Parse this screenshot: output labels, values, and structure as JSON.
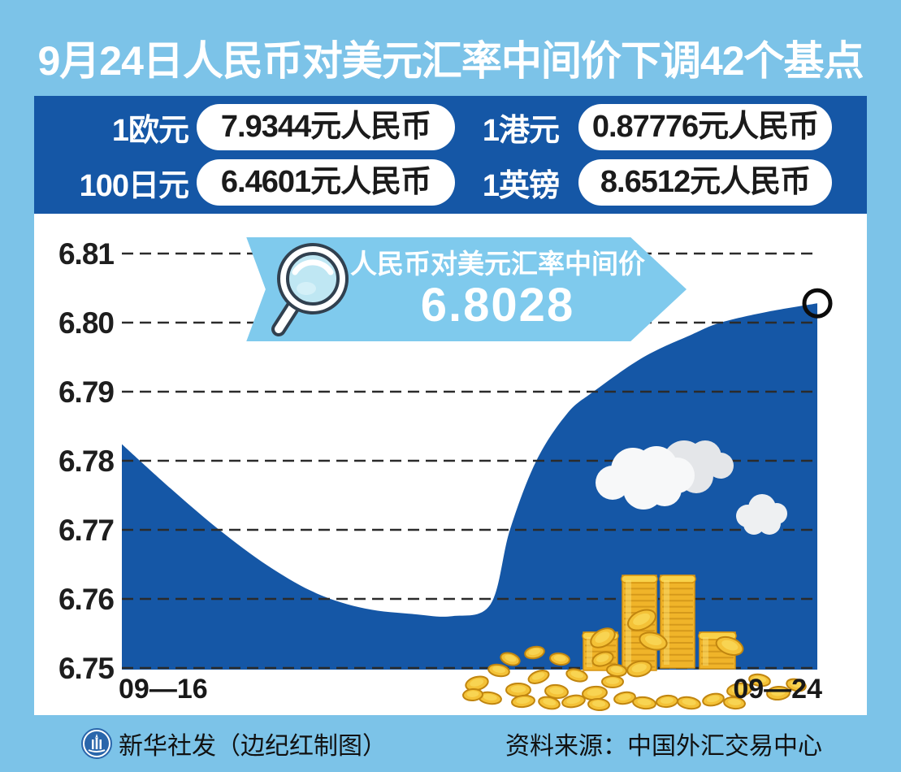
{
  "title": "9月24日人民币对美元汇率中间价下调42个基点",
  "rates": [
    {
      "label": "1欧元",
      "value": "7.9344元人民币"
    },
    {
      "label": "1港元",
      "value": "0.87776元人民币"
    },
    {
      "label": "100日元",
      "value": "6.4601元人民币"
    },
    {
      "label": "1英镑",
      "value": "8.6512元人民币"
    }
  ],
  "callout": {
    "icon": "magnifier-icon",
    "label": "人民币对美元汇率中间价",
    "value": "6.8028"
  },
  "footer": {
    "credit": "新华社发（边纪红制图）",
    "source": "资料来源：中国外汇交易中心",
    "logo": "xinhua-emblem"
  },
  "colors": {
    "frame_light_blue": "#7cc3e8",
    "banner_dark_blue": "#1557a6",
    "callout_blue": "#7fcaed",
    "area_fill_blue": "#1557a6",
    "gold_coin": "#f4c237",
    "grid_line": "#2b2b2b",
    "title_text": "#ffffff",
    "pill_text": "#1b1b1b"
  },
  "chart_data": {
    "type": "area",
    "title": "人民币对美元汇率中间价",
    "highlight_value": 6.8028,
    "x_start_label": "09—16",
    "x_end_label": "09—24",
    "y_tick_labels": [
      "6.81",
      "6.80",
      "6.79",
      "6.78",
      "6.77",
      "6.76",
      "6.75"
    ],
    "y_ticks": [
      6.81,
      6.8,
      6.79,
      6.78,
      6.77,
      6.76,
      6.75
    ],
    "ylim": [
      6.75,
      6.81
    ],
    "grid": "dashed-horizontal",
    "legend": "none",
    "series": [
      {
        "name": "人民币对美元汇率中间价",
        "x_range": [
          "09-16",
          "09-24"
        ],
        "points": [
          [
            0.0,
            6.7824
          ],
          [
            0.07,
            6.776
          ],
          [
            0.14,
            6.77
          ],
          [
            0.21,
            6.7648
          ],
          [
            0.28,
            6.7608
          ],
          [
            0.35,
            6.7586
          ],
          [
            0.42,
            6.7578
          ],
          [
            0.475,
            6.7575
          ],
          [
            0.53,
            6.7592
          ],
          [
            0.558,
            6.77
          ],
          [
            0.596,
            6.78
          ],
          [
            0.64,
            6.7868
          ],
          [
            0.678,
            6.79
          ],
          [
            0.75,
            6.795
          ],
          [
            0.82,
            6.7983
          ],
          [
            0.861,
            6.8
          ],
          [
            0.93,
            6.8016
          ],
          [
            1.0,
            6.8028
          ]
        ]
      }
    ],
    "end_marker": {
      "x": 1.0,
      "value": 6.8028
    }
  }
}
